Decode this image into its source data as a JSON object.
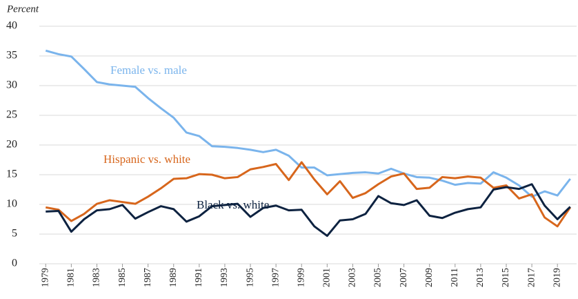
{
  "chart_data": {
    "type": "line",
    "y_label": "Percent",
    "x": [
      1979,
      1980,
      1981,
      1982,
      1983,
      1984,
      1985,
      1986,
      1987,
      1988,
      1989,
      1990,
      1991,
      1992,
      1993,
      1994,
      1995,
      1996,
      1997,
      1998,
      1999,
      2000,
      2001,
      2002,
      2003,
      2004,
      2005,
      2006,
      2007,
      2008,
      2009,
      2010,
      2011,
      2012,
      2013,
      2014,
      2015,
      2016,
      2017,
      2018,
      2019,
      2020
    ],
    "xlim": [
      1978.5,
      2020.5
    ],
    "xticks": [
      1979,
      1981,
      1983,
      1985,
      1987,
      1989,
      1991,
      1993,
      1995,
      1997,
      1999,
      2001,
      2003,
      2005,
      2007,
      2009,
      2011,
      2013,
      2015,
      2017,
      2019
    ],
    "ylim": [
      0,
      40
    ],
    "yticks": [
      0,
      5,
      10,
      15,
      20,
      25,
      30,
      35,
      40
    ],
    "grid": true,
    "series": [
      {
        "name": "Female vs. male",
        "color": "#7ab4ec",
        "values": [
          35.9,
          35.3,
          34.9,
          32.8,
          30.6,
          30.2,
          30.0,
          29.8,
          27.9,
          26.2,
          24.6,
          22.1,
          21.5,
          19.8,
          19.7,
          19.5,
          19.2,
          18.8,
          19.2,
          18.2,
          16.2,
          16.2,
          14.9,
          15.1,
          15.3,
          15.4,
          15.2,
          16.0,
          15.2,
          14.6,
          14.5,
          14.0,
          13.3,
          13.6,
          13.5,
          15.4,
          14.5,
          13.2,
          11.3,
          12.2,
          11.5,
          14.3
        ]
      },
      {
        "name": "Hispanic vs. white",
        "color": "#d7661c",
        "values": [
          9.5,
          9.1,
          7.2,
          8.4,
          10.1,
          10.7,
          10.4,
          10.1,
          11.3,
          12.7,
          14.3,
          14.4,
          15.1,
          15.0,
          14.4,
          14.6,
          15.9,
          16.3,
          16.8,
          14.1,
          17.1,
          14.2,
          11.7,
          13.9,
          11.1,
          11.9,
          13.4,
          14.7,
          15.2,
          12.6,
          12.8,
          14.6,
          14.4,
          14.7,
          14.5,
          12.8,
          13.2,
          11.0,
          11.7,
          7.8,
          6.3,
          9.5
        ]
      },
      {
        "name": "Black vs. white",
        "color": "#0d2240",
        "values": [
          8.8,
          8.9,
          5.4,
          7.5,
          9.0,
          9.2,
          9.9,
          7.6,
          8.7,
          9.7,
          9.2,
          7.1,
          8.0,
          9.7,
          9.9,
          10.1,
          7.9,
          9.4,
          9.8,
          9.0,
          9.1,
          6.3,
          4.7,
          7.3,
          7.5,
          8.4,
          11.4,
          10.2,
          9.9,
          10.7,
          8.1,
          7.7,
          8.6,
          9.2,
          9.5,
          12.5,
          12.9,
          12.6,
          13.4,
          9.8,
          7.5,
          9.6
        ]
      }
    ]
  }
}
